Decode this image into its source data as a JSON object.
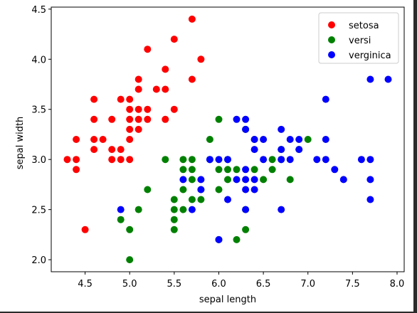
{
  "chart_data": {
    "type": "scatter",
    "title": "",
    "xlabel": "sepal length",
    "ylabel": "sepal width",
    "xlim": [
      4.12,
      8.08
    ],
    "ylim": [
      1.88,
      4.52
    ],
    "xticks": [
      "4.5",
      "5.0",
      "5.5",
      "6.0",
      "6.5",
      "7.0",
      "7.5",
      "8.0"
    ],
    "yticks": [
      "2.0",
      "2.5",
      "3.0",
      "3.5",
      "4.0",
      "4.5"
    ],
    "grid": false,
    "legend_position": "top-right",
    "series": [
      {
        "name": "setosa",
        "color": "#ff0000",
        "points": [
          [
            4.3,
            3.0
          ],
          [
            4.4,
            3.0
          ],
          [
            4.4,
            3.2
          ],
          [
            4.4,
            2.9
          ],
          [
            4.5,
            2.3
          ],
          [
            4.6,
            3.1
          ],
          [
            4.6,
            3.2
          ],
          [
            4.6,
            3.4
          ],
          [
            4.6,
            3.6
          ],
          [
            4.7,
            3.2
          ],
          [
            4.8,
            3.0
          ],
          [
            4.8,
            3.1
          ],
          [
            4.8,
            3.4
          ],
          [
            4.9,
            3.0
          ],
          [
            4.9,
            3.1
          ],
          [
            4.9,
            3.6
          ],
          [
            5.0,
            3.0
          ],
          [
            5.0,
            3.2
          ],
          [
            5.0,
            3.3
          ],
          [
            5.0,
            3.4
          ],
          [
            5.0,
            3.5
          ],
          [
            5.0,
            3.6
          ],
          [
            5.1,
            3.3
          ],
          [
            5.1,
            3.4
          ],
          [
            5.1,
            3.5
          ],
          [
            5.1,
            3.7
          ],
          [
            5.1,
            3.8
          ],
          [
            5.2,
            3.4
          ],
          [
            5.2,
            3.5
          ],
          [
            5.2,
            4.1
          ],
          [
            5.3,
            3.7
          ],
          [
            5.4,
            3.4
          ],
          [
            5.4,
            3.7
          ],
          [
            5.4,
            3.9
          ],
          [
            5.5,
            3.5
          ],
          [
            5.5,
            4.2
          ],
          [
            5.7,
            3.8
          ],
          [
            5.7,
            4.4
          ],
          [
            5.8,
            4.0
          ]
        ]
      },
      {
        "name": "versi",
        "color": "#008000",
        "points": [
          [
            4.9,
            2.4
          ],
          [
            5.0,
            2.0
          ],
          [
            5.0,
            2.3
          ],
          [
            5.1,
            2.5
          ],
          [
            5.2,
            2.7
          ],
          [
            5.4,
            3.0
          ],
          [
            5.5,
            2.3
          ],
          [
            5.5,
            2.4
          ],
          [
            5.5,
            2.5
          ],
          [
            5.5,
            2.6
          ],
          [
            5.6,
            2.5
          ],
          [
            5.6,
            2.7
          ],
          [
            5.6,
            2.9
          ],
          [
            5.6,
            3.0
          ],
          [
            5.7,
            2.6
          ],
          [
            5.7,
            2.8
          ],
          [
            5.7,
            2.9
          ],
          [
            5.7,
            3.0
          ],
          [
            5.8,
            2.6
          ],
          [
            5.8,
            2.7
          ],
          [
            5.9,
            3.0
          ],
          [
            5.9,
            3.2
          ],
          [
            6.0,
            2.2
          ],
          [
            6.0,
            2.7
          ],
          [
            6.0,
            2.9
          ],
          [
            6.0,
            3.4
          ],
          [
            6.1,
            2.8
          ],
          [
            6.1,
            2.9
          ],
          [
            6.1,
            3.0
          ],
          [
            6.2,
            2.2
          ],
          [
            6.2,
            2.9
          ],
          [
            6.3,
            2.3
          ],
          [
            6.3,
            2.5
          ],
          [
            6.3,
            3.3
          ],
          [
            6.4,
            2.9
          ],
          [
            6.4,
            3.2
          ],
          [
            6.5,
            2.8
          ],
          [
            6.6,
            2.9
          ],
          [
            6.6,
            3.0
          ],
          [
            6.7,
            3.0
          ],
          [
            6.7,
            3.1
          ],
          [
            6.8,
            2.8
          ],
          [
            6.9,
            3.1
          ],
          [
            7.0,
            3.2
          ]
        ]
      },
      {
        "name": "verginica",
        "color": "#0000ff",
        "points": [
          [
            4.9,
            2.5
          ],
          [
            5.6,
            2.8
          ],
          [
            5.7,
            2.5
          ],
          [
            5.8,
            2.7
          ],
          [
            5.8,
            2.8
          ],
          [
            5.9,
            3.0
          ],
          [
            6.0,
            2.2
          ],
          [
            6.0,
            3.0
          ],
          [
            6.1,
            2.6
          ],
          [
            6.1,
            3.0
          ],
          [
            6.2,
            2.8
          ],
          [
            6.2,
            3.4
          ],
          [
            6.3,
            2.5
          ],
          [
            6.3,
            2.7
          ],
          [
            6.3,
            2.8
          ],
          [
            6.3,
            2.9
          ],
          [
            6.3,
            3.3
          ],
          [
            6.3,
            3.4
          ],
          [
            6.4,
            2.7
          ],
          [
            6.4,
            2.8
          ],
          [
            6.4,
            3.1
          ],
          [
            6.4,
            3.2
          ],
          [
            6.5,
            3.0
          ],
          [
            6.5,
            3.2
          ],
          [
            6.7,
            2.5
          ],
          [
            6.7,
            3.0
          ],
          [
            6.7,
            3.1
          ],
          [
            6.7,
            3.3
          ],
          [
            6.8,
            3.0
          ],
          [
            6.8,
            3.2
          ],
          [
            6.9,
            3.1
          ],
          [
            6.9,
            3.2
          ],
          [
            7.1,
            3.0
          ],
          [
            7.2,
            3.0
          ],
          [
            7.2,
            3.2
          ],
          [
            7.2,
            3.6
          ],
          [
            7.3,
            2.9
          ],
          [
            7.4,
            2.8
          ],
          [
            7.6,
            3.0
          ],
          [
            7.7,
            2.6
          ],
          [
            7.7,
            2.8
          ],
          [
            7.7,
            3.0
          ],
          [
            7.7,
            3.8
          ],
          [
            7.9,
            3.8
          ]
        ]
      }
    ]
  }
}
